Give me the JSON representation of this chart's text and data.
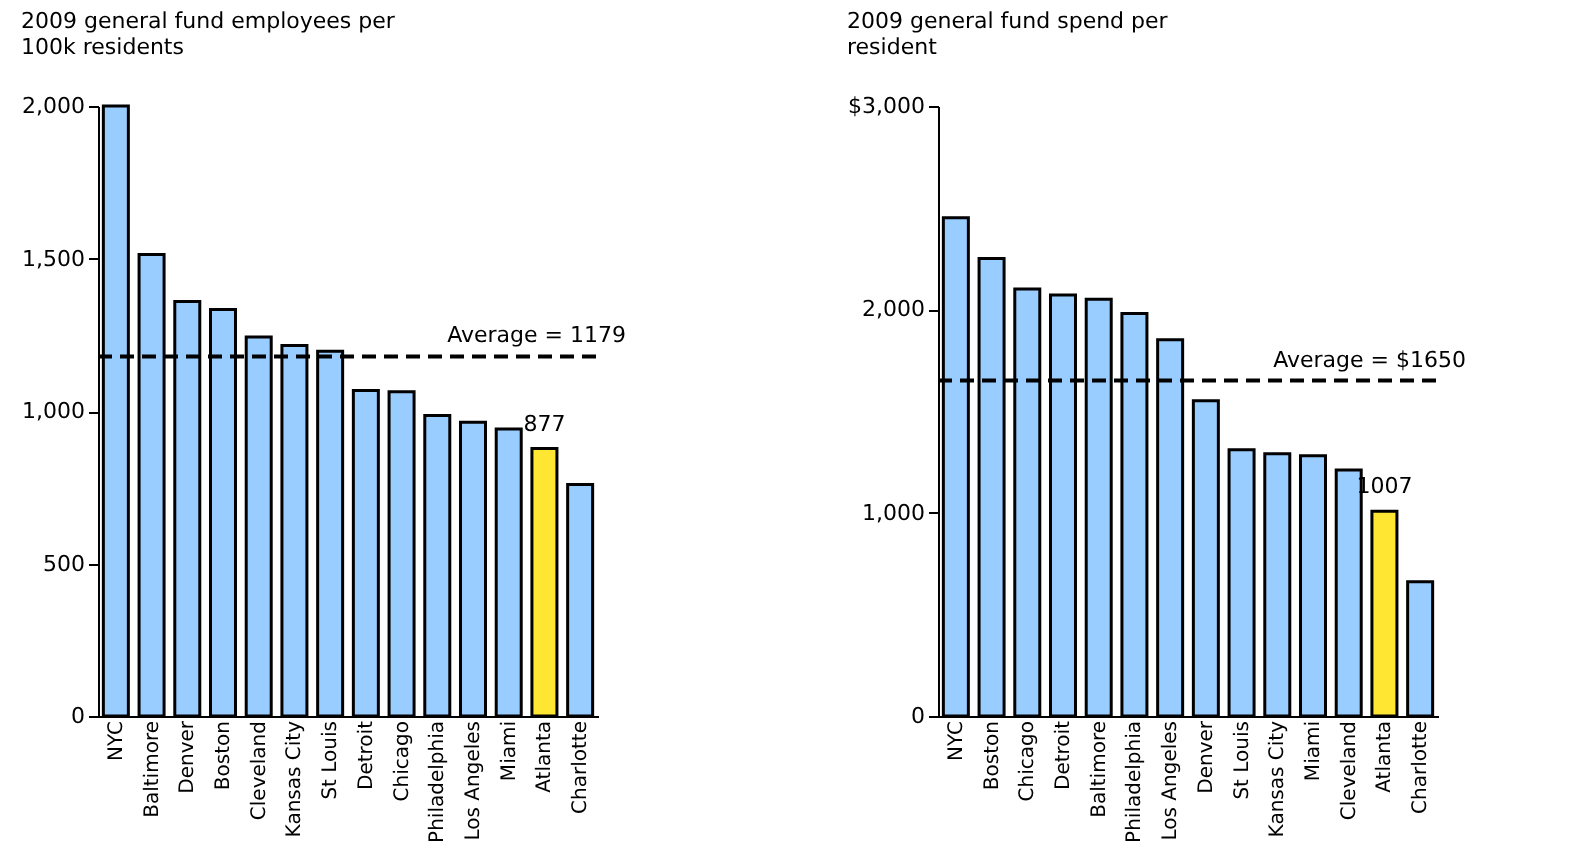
{
  "chart_data": [
    {
      "type": "bar",
      "title": "2009 general fund employees per 100k residents",
      "categories": [
        "NYC",
        "Baltimore",
        "Denver",
        "Boston",
        "Cleveland",
        "Kansas City",
        "St Louis",
        "Detroit",
        "Chicago",
        "Philadelphia",
        "Los Angeles",
        "Miami",
        "Atlanta",
        "Charlotte"
      ],
      "values": [
        2000,
        1513,
        1359,
        1333,
        1243,
        1215,
        1196,
        1067,
        1063,
        985,
        963,
        941,
        877,
        759
      ],
      "colors": [
        "#99ccff",
        "#99ccff",
        "#99ccff",
        "#99ccff",
        "#99ccff",
        "#99ccff",
        "#99ccff",
        "#99ccff",
        "#99ccff",
        "#99ccff",
        "#99ccff",
        "#99ccff",
        "#ffe633",
        "#99ccff"
      ],
      "value_labels": [
        null,
        null,
        null,
        null,
        null,
        null,
        null,
        null,
        null,
        null,
        null,
        null,
        "877",
        null
      ],
      "ylim": [
        0,
        2000
      ],
      "yticks": [
        0,
        500,
        {
          "value": 1000,
          "label": "1,000"
        },
        {
          "value": 1500,
          "label": "1,500"
        },
        {
          "value": 2000,
          "label": "2,000"
        }
      ],
      "ref_lines": [
        {
          "axis": "y",
          "value": 1179,
          "label": "Average = 1179",
          "color": "#000000",
          "line_style": "dashed"
        }
      ],
      "grid": false
    },
    {
      "type": "bar",
      "title": "2009 general fund spend per resident",
      "categories": [
        "NYC",
        "Boston",
        "Chicago",
        "Detroit",
        "Baltimore",
        "Philadelphia",
        "Los Angeles",
        "Denver",
        "St Louis",
        "Kansas City",
        "Miami",
        "Cleveland",
        "Atlanta",
        "Charlotte"
      ],
      "values": [
        2450,
        2250,
        2100,
        2070,
        2050,
        1980,
        1850,
        1550,
        1310,
        1290,
        1280,
        1210,
        1007,
        660
      ],
      "colors": [
        "#99ccff",
        "#99ccff",
        "#99ccff",
        "#99ccff",
        "#99ccff",
        "#99ccff",
        "#99ccff",
        "#99ccff",
        "#99ccff",
        "#99ccff",
        "#99ccff",
        "#99ccff",
        "#ffe633",
        "#99ccff"
      ],
      "value_labels": [
        null,
        null,
        null,
        null,
        null,
        null,
        null,
        null,
        null,
        null,
        null,
        null,
        "1007",
        null
      ],
      "ylim": [
        0,
        3000
      ],
      "yticks": [
        0,
        {
          "value": 1000,
          "label": "1,000"
        },
        {
          "value": 2000,
          "label": "2,000"
        },
        {
          "value": 3000,
          "label": "$3,000"
        }
      ],
      "ref_lines": [
        {
          "axis": "y",
          "value": 1650,
          "label": "Average = $1650",
          "color": "#000000",
          "line_style": "dashed"
        }
      ],
      "grid": false
    }
  ]
}
